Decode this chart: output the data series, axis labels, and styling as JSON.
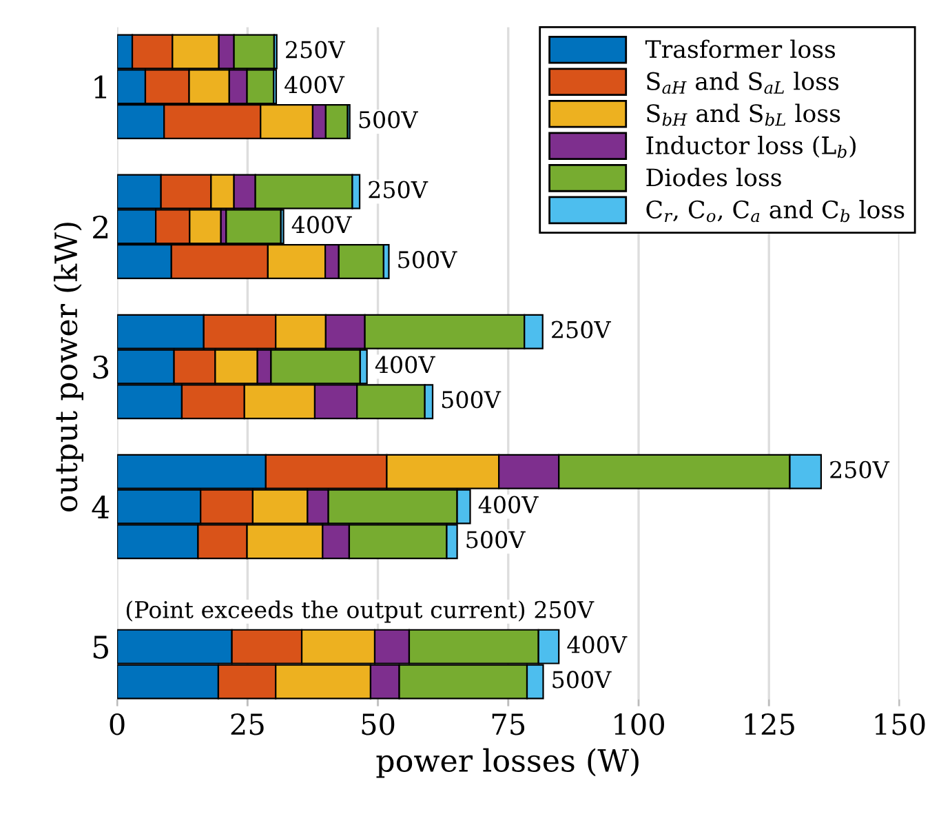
{
  "chart_data": {
    "type": "bar",
    "orientation": "horizontal",
    "stacked": true,
    "xlabel": "power losses (W)",
    "ylabel": "output power (kW)",
    "categories": [
      null,
      "1",
      null,
      null,
      null,
      "2",
      null,
      null,
      null,
      "3",
      null,
      null,
      null,
      "4",
      null,
      null,
      null,
      "5",
      null
    ],
    "xlim": [
      0,
      150
    ],
    "xticks": [
      0,
      25,
      50,
      75,
      100,
      125,
      150
    ],
    "grid": "x",
    "legend": "top right",
    "series": [
      {
        "name": "Trasformer loss",
        "color": "#0072bd",
        "values": [
          2.9,
          5.4,
          9.0,
          null,
          8.4,
          7.4,
          10.4,
          null,
          16.6,
          10.9,
          12.4,
          null,
          28.5,
          16.0,
          15.5,
          null,
          null,
          22.0,
          19.4
        ]
      },
      {
        "name": "S$_{aH}$ and S$_{aL}$ loss",
        "color": "#d95319",
        "values": [
          7.7,
          8.4,
          18.5,
          null,
          9.6,
          6.5,
          18.5,
          null,
          13.8,
          7.9,
          12.0,
          null,
          23.2,
          10.0,
          9.4,
          null,
          null,
          13.4,
          11.0
        ]
      },
      {
        "name": "S$_{bH}$ and S$_{bL}$ loss",
        "color": "#edb120",
        "values": [
          8.9,
          7.7,
          10.0,
          null,
          4.4,
          6.0,
          11.0,
          null,
          9.6,
          8.1,
          13.5,
          null,
          21.5,
          10.5,
          14.5,
          null,
          null,
          14.0,
          18.2
        ]
      },
      {
        "name": "Inductor loss (L$_{b}$)",
        "color": "#7e2f8e",
        "values": [
          2.9,
          3.4,
          2.5,
          null,
          4.1,
          1.0,
          2.6,
          null,
          7.5,
          2.6,
          8.1,
          null,
          11.5,
          4.0,
          5.1,
          null,
          null,
          6.6,
          5.5
        ]
      },
      {
        "name": "Diodes loss",
        "color": "#77ac30",
        "values": [
          7.7,
          5.1,
          4.2,
          null,
          18.6,
          10.5,
          8.6,
          null,
          30.6,
          17.1,
          13.0,
          null,
          44.3,
          24.7,
          18.7,
          null,
          null,
          24.8,
          24.5
        ]
      },
      {
        "name": "C$_{r}$, C$_{o}$, C$_{a}$ and C$_{b}$ loss",
        "color": "#4dbeee",
        "values": [
          0.5,
          0.5,
          0.4,
          null,
          1.4,
          0.5,
          1.0,
          null,
          3.5,
          1.3,
          1.5,
          null,
          6.0,
          2.5,
          2.0,
          null,
          null,
          3.9,
          3.1
        ]
      }
    ],
    "annotations": [
      "250V",
      "400V",
      "500V",
      "250V",
      "400V",
      "500V",
      "250V",
      "400V",
      "500V",
      "250V",
      "400V",
      "500V",
      "(Point exceeds the output current) 250V",
      "400V",
      "500V"
    ]
  }
}
